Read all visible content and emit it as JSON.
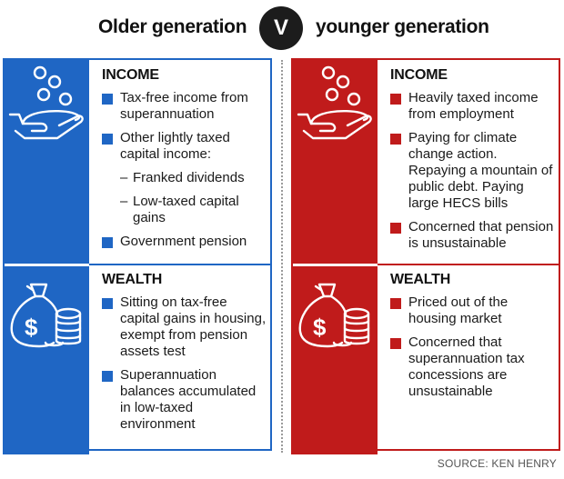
{
  "header": {
    "left_title": "Older generation",
    "vs": "V",
    "right_title": "younger generation"
  },
  "colors": {
    "older_accent": "#1f66c4",
    "younger_accent": "#c01b1b"
  },
  "icons": {
    "income": "hand-with-coins-icon",
    "wealth": "money-bag-with-coin-stack-icon"
  },
  "older": {
    "income": {
      "title": "INCOME",
      "items": [
        "Tax-free income from superannuation",
        "Other lightly taxed capital income:",
        "Government pension"
      ],
      "subitems": [
        "Franked dividends",
        "Low-taxed capital gains"
      ]
    },
    "wealth": {
      "title": "WEALTH",
      "items": [
        "Sitting on tax-free capital gains in housing, exempt from pension assets test",
        "Superannuation balances accumulated in low-taxed environment"
      ]
    }
  },
  "younger": {
    "income": {
      "title": "INCOME",
      "items": [
        "Heavily taxed income from employment",
        "Paying for climate change action. Repaying a mountain of public debt. Paying large HECS bills",
        "Concerned that pension is unsustainable"
      ]
    },
    "wealth": {
      "title": "WEALTH",
      "items": [
        "Priced out of the housing market",
        "Concerned that superannuation tax concessions are unsustainable"
      ]
    }
  },
  "source": "SOURCE: KEN HENRY"
}
